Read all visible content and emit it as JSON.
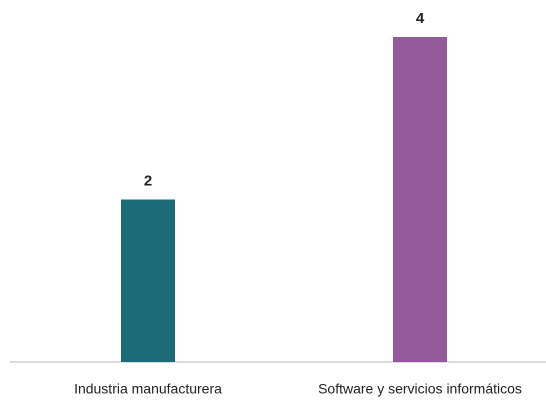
{
  "chart_data": {
    "type": "bar",
    "categories": [
      "Industria manufacturera",
      "Software y servicios informáticos"
    ],
    "values": [
      2,
      4
    ],
    "colors": [
      "#1d6a78",
      "#955a9b"
    ],
    "ylim": [
      0,
      4
    ]
  }
}
